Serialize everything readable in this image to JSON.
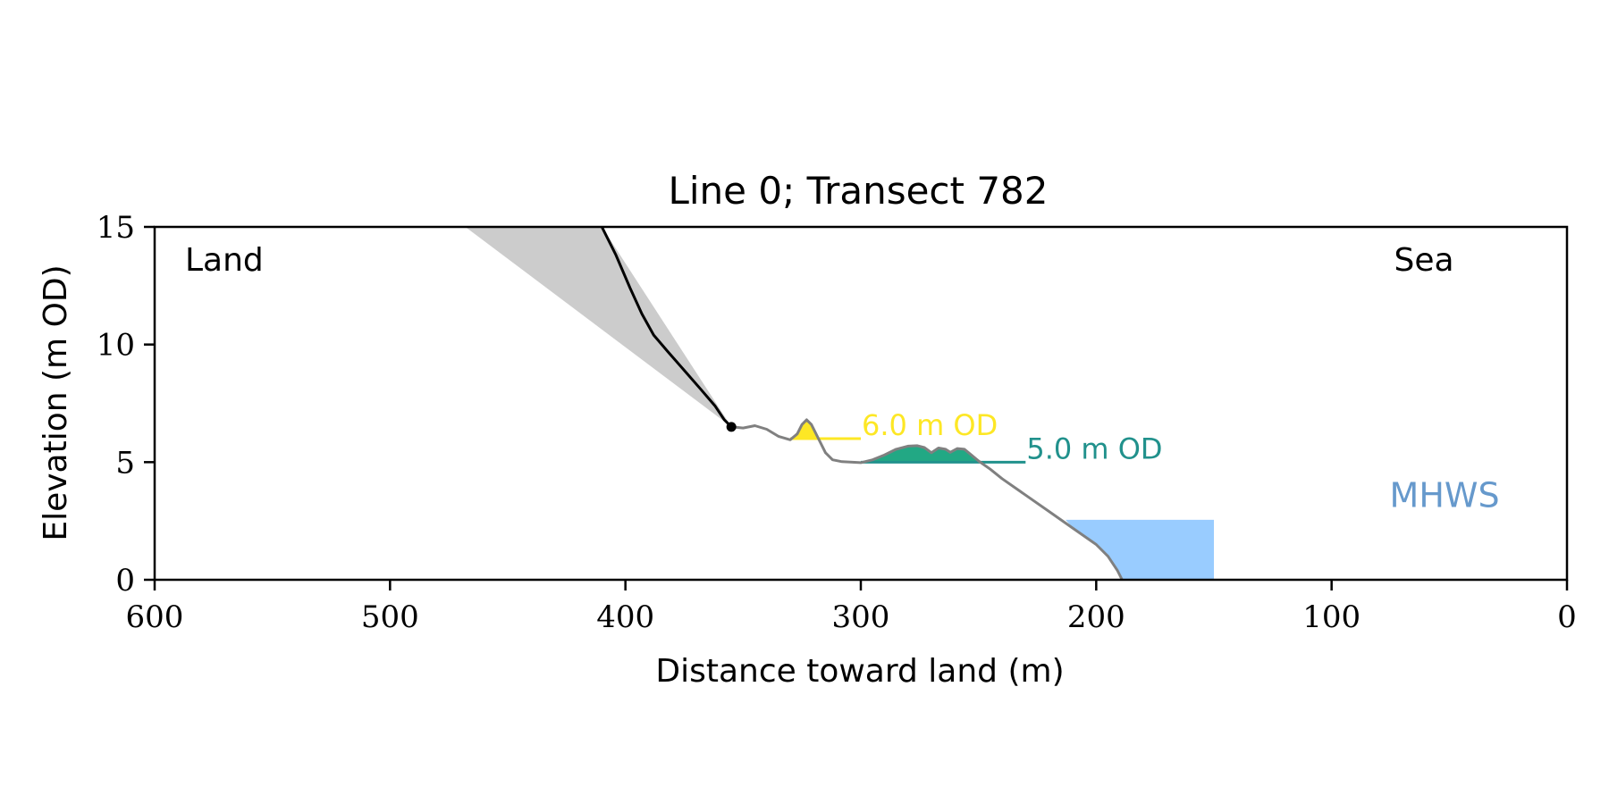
{
  "chart_data": {
    "type": "area",
    "title": "Line 0; Transect 782",
    "xlabel": "Distance toward land (m)",
    "ylabel": "Elevation (m OD)",
    "xlim": [
      600,
      0
    ],
    "ylim": [
      0,
      15
    ],
    "x_ticks": [
      600,
      500,
      400,
      300,
      200,
      100,
      0
    ],
    "y_ticks": [
      0,
      5,
      10,
      15
    ],
    "grid": false,
    "corner_labels": {
      "left": "Land",
      "right": "Sea"
    },
    "colors": {
      "cliff_line": "#000000",
      "profile_line": "#808080",
      "cliff_wedge": "#cccccc",
      "level_6": "#fde725",
      "level_5": "#21918c",
      "dune_fill": "#22a884",
      "mhws_fill": "#99ccff",
      "mhws_label": "#6699cc"
    },
    "cliff_profile": [
      [
        410,
        15.0
      ],
      [
        404,
        13.8
      ],
      [
        398,
        12.4
      ],
      [
        393,
        11.3
      ],
      [
        388,
        10.4
      ],
      [
        382,
        9.7
      ],
      [
        375,
        8.9
      ],
      [
        368,
        8.1
      ],
      [
        362,
        7.4
      ],
      [
        358,
        6.8
      ],
      [
        355,
        6.5
      ]
    ],
    "cliff_wedge": [
      [
        468,
        15.0
      ],
      [
        410,
        15.0
      ],
      [
        355,
        6.5
      ]
    ],
    "cliff_toe": [
      355,
      6.5
    ],
    "beach_profile": [
      [
        355,
        6.5
      ],
      [
        350,
        6.45
      ],
      [
        345,
        6.55
      ],
      [
        340,
        6.4
      ],
      [
        335,
        6.1
      ],
      [
        330,
        5.95
      ],
      [
        327,
        6.2
      ],
      [
        325,
        6.6
      ],
      [
        323,
        6.8
      ],
      [
        321,
        6.6
      ],
      [
        318,
        6.0
      ],
      [
        315,
        5.4
      ],
      [
        312,
        5.1
      ],
      [
        308,
        5.02
      ],
      [
        300,
        4.98
      ],
      [
        295,
        5.1
      ],
      [
        290,
        5.3
      ],
      [
        285,
        5.55
      ],
      [
        280,
        5.68
      ],
      [
        276,
        5.7
      ],
      [
        273,
        5.62
      ],
      [
        270,
        5.4
      ],
      [
        267,
        5.6
      ],
      [
        264,
        5.55
      ],
      [
        262,
        5.42
      ],
      [
        259,
        5.58
      ],
      [
        256,
        5.55
      ],
      [
        253,
        5.3
      ],
      [
        250,
        5.05
      ],
      [
        245,
        4.7
      ],
      [
        240,
        4.3
      ],
      [
        230,
        3.6
      ],
      [
        220,
        2.9
      ],
      [
        210,
        2.2
      ],
      [
        200,
        1.5
      ],
      [
        195,
        1.0
      ],
      [
        191,
        0.4
      ],
      [
        189,
        0.0
      ]
    ],
    "levels": [
      {
        "label": "6.0 m OD",
        "y": 6.0,
        "x_from": 330,
        "x_to": 300
      },
      {
        "label": "5.0 m OD",
        "y": 5.0,
        "x_from": 300,
        "x_to": 230
      }
    ],
    "level6_fill": [
      [
        330,
        6.0
      ],
      [
        327,
        6.2
      ],
      [
        325,
        6.6
      ],
      [
        323,
        6.8
      ],
      [
        321,
        6.6
      ],
      [
        318,
        6.0
      ]
    ],
    "dune_fill": [
      [
        300,
        5.0
      ],
      [
        300,
        4.98
      ],
      [
        295,
        5.1
      ],
      [
        290,
        5.3
      ],
      [
        285,
        5.55
      ],
      [
        280,
        5.68
      ],
      [
        276,
        5.7
      ],
      [
        273,
        5.62
      ],
      [
        270,
        5.4
      ],
      [
        267,
        5.6
      ],
      [
        264,
        5.55
      ],
      [
        262,
        5.42
      ],
      [
        259,
        5.58
      ],
      [
        256,
        5.55
      ],
      [
        253,
        5.3
      ],
      [
        250,
        5.05
      ],
      [
        249,
        5.0
      ]
    ],
    "mhws": {
      "label": "MHWS",
      "elevation": 2.55,
      "x_seaward": 150,
      "profile_x_start": 213
    }
  }
}
